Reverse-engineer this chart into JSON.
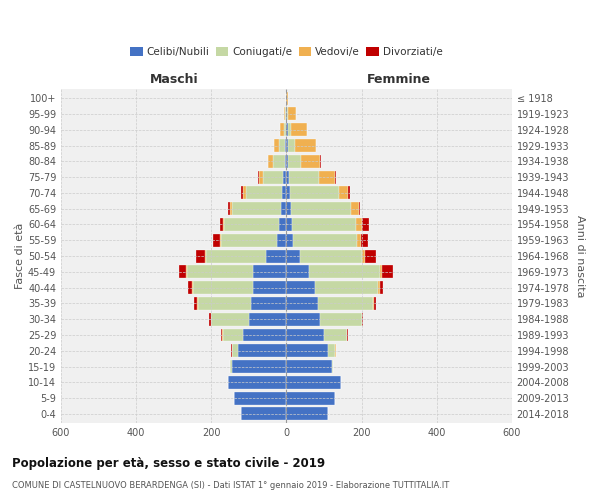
{
  "age_groups": [
    "0-4",
    "5-9",
    "10-14",
    "15-19",
    "20-24",
    "25-29",
    "30-34",
    "35-39",
    "40-44",
    "45-49",
    "50-54",
    "55-59",
    "60-64",
    "65-69",
    "70-74",
    "75-79",
    "80-84",
    "85-89",
    "90-94",
    "95-99",
    "100+"
  ],
  "birth_years": [
    "2014-2018",
    "2009-2013",
    "2004-2008",
    "1999-2003",
    "1994-1998",
    "1989-1993",
    "1984-1988",
    "1979-1983",
    "1974-1978",
    "1969-1973",
    "1964-1968",
    "1959-1963",
    "1954-1958",
    "1949-1953",
    "1944-1948",
    "1939-1943",
    "1934-1938",
    "1929-1933",
    "1924-1928",
    "1919-1923",
    "≤ 1918"
  ],
  "maschi": {
    "celibi": [
      120,
      140,
      155,
      145,
      130,
      115,
      100,
      95,
      90,
      90,
      55,
      25,
      20,
      15,
      12,
      8,
      5,
      4,
      2,
      2,
      0
    ],
    "coniugati": [
      0,
      0,
      0,
      5,
      15,
      55,
      100,
      140,
      160,
      175,
      160,
      150,
      145,
      130,
      95,
      55,
      30,
      15,
      5,
      2,
      0
    ],
    "vedovi": [
      0,
      0,
      0,
      0,
      1,
      2,
      2,
      2,
      2,
      2,
      2,
      3,
      3,
      5,
      8,
      10,
      15,
      15,
      10,
      3,
      0
    ],
    "divorziati": [
      0,
      0,
      0,
      0,
      1,
      3,
      5,
      8,
      10,
      18,
      25,
      18,
      8,
      5,
      5,
      2,
      0,
      0,
      0,
      0,
      0
    ]
  },
  "femmine": {
    "nubili": [
      110,
      130,
      145,
      120,
      110,
      100,
      90,
      85,
      75,
      60,
      35,
      18,
      14,
      12,
      10,
      8,
      5,
      4,
      3,
      2,
      0
    ],
    "coniugate": [
      0,
      0,
      0,
      5,
      20,
      60,
      110,
      145,
      170,
      190,
      165,
      170,
      170,
      160,
      130,
      80,
      35,
      20,
      8,
      3,
      0
    ],
    "vedove": [
      0,
      0,
      0,
      0,
      1,
      2,
      2,
      3,
      3,
      5,
      8,
      10,
      18,
      20,
      25,
      40,
      50,
      55,
      45,
      20,
      5
    ],
    "divorziate": [
      0,
      0,
      0,
      0,
      1,
      2,
      3,
      5,
      10,
      30,
      30,
      18,
      18,
      5,
      5,
      3,
      2,
      0,
      0,
      0,
      0
    ]
  },
  "colors": {
    "celibi": "#4472C4",
    "coniugati": "#C5D8A4",
    "vedovi": "#F0B050",
    "divorziati": "#C00000"
  },
  "xlim": 600,
  "title": "Popolazione per età, sesso e stato civile - 2019",
  "subtitle": "COMUNE DI CASTELNUOVO BERARDENGA (SI) - Dati ISTAT 1° gennaio 2019 - Elaborazione TUTTITALIA.IT",
  "ylabel_left": "Fasce di età",
  "ylabel_right": "Anni di nascita",
  "xlabel_left": "Maschi",
  "xlabel_right": "Femmine",
  "bg_color": "#f0f0f0",
  "grid_color": "#cccccc"
}
